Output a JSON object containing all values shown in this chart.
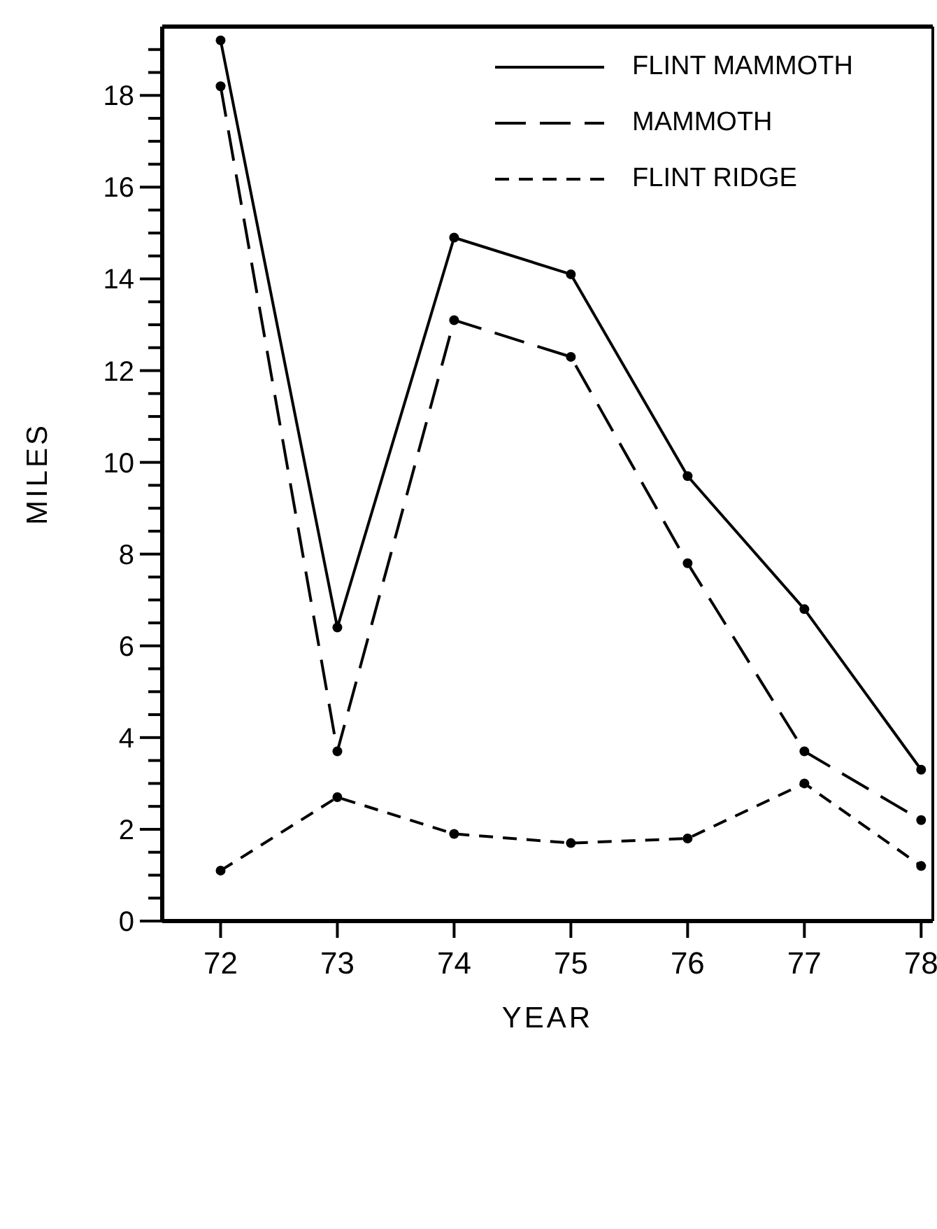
{
  "chart_data": {
    "type": "line",
    "xlabel": "YEAR",
    "ylabel": "MILES",
    "x": [
      72,
      73,
      74,
      75,
      76,
      77,
      78
    ],
    "series": [
      {
        "name": "FLINT MAMMOTH",
        "color": "#000000",
        "line_style": "solid",
        "values": [
          19.2,
          6.4,
          14.9,
          14.1,
          9.7,
          6.8,
          3.3
        ]
      },
      {
        "name": "MAMMOTH",
        "color": "#000000",
        "line_style": "dashed",
        "values": [
          18.2,
          3.7,
          13.1,
          12.3,
          7.8,
          3.7,
          2.2
        ]
      },
      {
        "name": "FLINT RIDGE",
        "color": "#000000",
        "line_style": "dashed",
        "values": [
          1.1,
          2.7,
          1.9,
          1.7,
          1.8,
          3.0,
          1.2
        ]
      }
    ],
    "xlim": [
      71.5,
      78.1
    ],
    "xticks": [
      72,
      73,
      74,
      75,
      76,
      77,
      78
    ],
    "ylim": [
      0,
      19.5
    ],
    "yticks": [
      0,
      {
        "value": 0.5,
        "label": null
      },
      {
        "value": 1,
        "label": null
      },
      {
        "value": 1.5,
        "label": null
      },
      2,
      {
        "value": 2.5,
        "label": null
      },
      {
        "value": 3,
        "label": null
      },
      {
        "value": 3.5,
        "label": null
      },
      4,
      {
        "value": 4.5,
        "label": null
      },
      {
        "value": 5,
        "label": null
      },
      {
        "value": 5.5,
        "label": null
      },
      6,
      {
        "value": 6.5,
        "label": null
      },
      {
        "value": 7,
        "label": null
      },
      {
        "value": 7.5,
        "label": null
      },
      8,
      {
        "value": 8.5,
        "label": null
      },
      {
        "value": 9,
        "label": null
      },
      {
        "value": 9.5,
        "label": null
      },
      10,
      {
        "value": 10.5,
        "label": null
      },
      {
        "value": 11,
        "label": null
      },
      {
        "value": 11.5,
        "label": null
      },
      12,
      {
        "value": 12.5,
        "label": null
      },
      {
        "value": 13,
        "label": null
      },
      {
        "value": 13.5,
        "label": null
      },
      14,
      {
        "value": 14.5,
        "label": null
      },
      {
        "value": 15,
        "label": null
      },
      {
        "value": 15.5,
        "label": null
      },
      16,
      {
        "value": 16.5,
        "label": null
      },
      {
        "value": 17,
        "label": null
      },
      {
        "value": 17.5,
        "label": null
      },
      18,
      {
        "value": 18.5,
        "label": null
      },
      {
        "value": 19,
        "label": null
      }
    ],
    "grid": false,
    "legend": "top right",
    "marker": "circle"
  }
}
